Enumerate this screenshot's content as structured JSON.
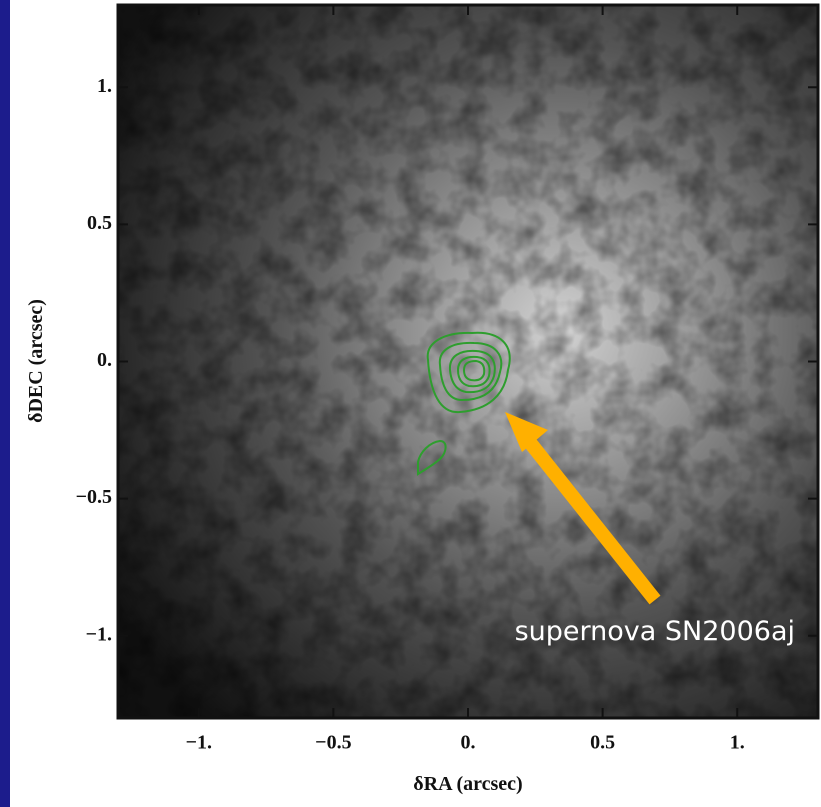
{
  "chart_data": {
    "type": "image",
    "x_label": "δRA (arcsec)",
    "y_label": "δDEC (arcsec)",
    "annotation": "supernova SN2006aj",
    "xlim": [
      -1.3,
      1.3
    ],
    "ylim": [
      -1.3,
      1.3
    ],
    "xticks": [
      {
        "value": -1,
        "label": "−1."
      },
      {
        "value": -0.5,
        "label": "−0.5"
      },
      {
        "value": 0,
        "label": "0."
      },
      {
        "value": 0.5,
        "label": "0.5"
      },
      {
        "value": 1,
        "label": "1."
      }
    ],
    "yticks": [
      {
        "value": -1,
        "label": "−1."
      },
      {
        "value": -0.5,
        "label": "−0.5"
      },
      {
        "value": 0,
        "label": "0."
      },
      {
        "value": 0.5,
        "label": "0.5"
      },
      {
        "value": 1,
        "label": "1."
      }
    ],
    "contour_color": "#2e9e2e",
    "arrow_color": "#ffb000"
  }
}
